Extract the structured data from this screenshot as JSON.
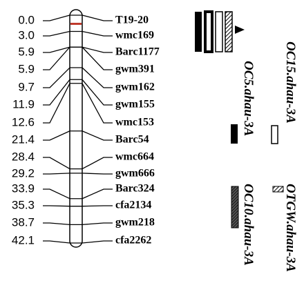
{
  "map": {
    "markers": [
      {
        "position": "0.0",
        "name": "T19-20"
      },
      {
        "position": "3.0",
        "name": "wmc169"
      },
      {
        "position": "5.9",
        "name": "Barc1177"
      },
      {
        "position": "5.9",
        "name": "gwm391"
      },
      {
        "position": "9.7",
        "name": "gwm162"
      },
      {
        "position": "11.9",
        "name": "gwm155"
      },
      {
        "position": "12.6",
        "name": "wmc153"
      },
      {
        "position": "21.4",
        "name": "Barc54"
      },
      {
        "position": "28.4",
        "name": "wmc664"
      },
      {
        "position": "29.2",
        "name": "gwm666"
      },
      {
        "position": "33.9",
        "name": "Barc324"
      },
      {
        "position": "35.3",
        "name": "cfa2134"
      },
      {
        "position": "38.7",
        "name": "gwm218"
      },
      {
        "position": "42.1",
        "name": "cfa2262"
      }
    ],
    "qtl_labels": [
      "OC5.ahau-3A",
      "OC15.ahau-3A",
      "OC10.ahau-3A",
      "OTGW.ahau-3A"
    ]
  }
}
